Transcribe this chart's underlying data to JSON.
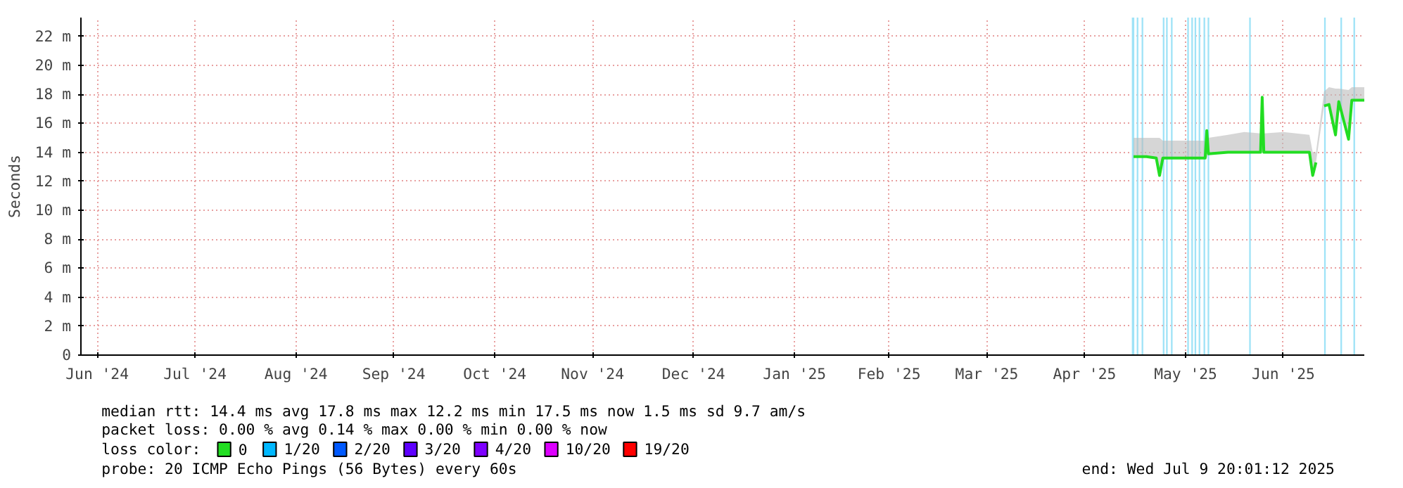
{
  "chart_data": {
    "type": "line",
    "ylabel": "Seconds",
    "xlim": [
      "2024-06-11",
      "2025-07-09T20:01"
    ],
    "xticks": [
      {
        "value": "2024-06-16",
        "label": "Jun '24"
      },
      {
        "value": "2024-07-16",
        "label": "Jul '24"
      },
      {
        "value": "2024-08-16",
        "label": "Aug '24"
      },
      {
        "value": "2024-09-15",
        "label": "Sep '24"
      },
      {
        "value": "2024-10-16",
        "label": "Oct '24"
      },
      {
        "value": "2024-11-15",
        "label": "Nov '24"
      },
      {
        "value": "2024-12-16",
        "label": "Dec '24"
      },
      {
        "value": "2025-01-16",
        "label": "Jan '25"
      },
      {
        "value": "2025-02-14",
        "label": "Feb '25"
      },
      {
        "value": "2025-03-16",
        "label": "Mar '25"
      },
      {
        "value": "2025-04-15",
        "label": "Apr '25"
      },
      {
        "value": "2025-05-16",
        "label": "May '25"
      },
      {
        "value": "2025-06-15",
        "label": "Jun '25"
      }
    ],
    "ylim": [
      0,
      23.3
    ],
    "yticks": [
      0,
      {
        "value": 2,
        "label": "2 m"
      },
      {
        "value": 4,
        "label": "4 m"
      },
      {
        "value": 6,
        "label": "6 m"
      },
      {
        "value": 8,
        "label": "8 m"
      },
      {
        "value": 10,
        "label": "10 m"
      },
      {
        "value": 12,
        "label": "12 m"
      },
      {
        "value": 14,
        "label": "14 m"
      },
      {
        "value": 16,
        "label": "16 m"
      },
      {
        "value": 18,
        "label": "18 m"
      },
      {
        "value": 20,
        "label": "20 m"
      },
      {
        "value": 22,
        "label": "22 m"
      }
    ],
    "grid": true,
    "marker": "none",
    "line_style": "solid",
    "legend": "bottom",
    "legend_title": "loss color:",
    "series": [
      {
        "name": "0",
        "color": "#22dd22",
        "x": [
          "2025-04-30",
          "2025-05-04",
          "2025-05-07",
          "2025-05-08",
          "2025-05-09",
          "2025-05-14",
          "2025-05-18",
          "2025-05-22",
          "2025-05-22T12:00",
          "2025-05-23",
          "2025-05-29",
          "2025-06-03",
          "2025-06-08",
          "2025-06-08T12:00",
          "2025-06-09",
          "2025-06-15",
          "2025-06-23",
          "2025-06-24",
          "2025-06-25",
          "2025-06-26",
          "2025-06-27T12:00",
          "2025-06-29",
          "2025-07-01",
          "2025-07-02",
          "2025-07-05",
          "2025-07-06",
          "2025-07-09T20:00"
        ],
        "values": [
          13.7,
          13.7,
          13.6,
          12.4,
          13.6,
          13.6,
          13.6,
          13.6,
          15.5,
          13.9,
          14.0,
          14.0,
          14.0,
          17.8,
          14.0,
          14.0,
          14.0,
          12.4,
          13.3,
          null,
          17.2,
          17.3,
          15.2,
          17.5,
          14.9,
          17.6,
          17.6
        ],
        "lower": [
          13.7,
          13.7,
          13.6,
          12.4,
          13.6,
          13.6,
          13.6,
          13.6,
          13.6,
          13.9,
          14.0,
          14.0,
          14.0,
          14.0,
          14.0,
          14.0,
          14.0,
          12.4,
          13.3,
          null,
          17.2,
          17.3,
          15.2,
          17.5,
          14.9,
          17.6,
          17.6
        ],
        "upper": [
          15.0,
          15.0,
          15.0,
          15.0,
          14.8,
          14.8,
          14.8,
          14.8,
          15.5,
          15.0,
          15.2,
          15.4,
          15.3,
          17.8,
          15.3,
          15.4,
          15.2,
          14.0,
          14.0,
          null,
          18.2,
          18.5,
          18.4,
          18.4,
          18.3,
          18.5,
          18.5
        ]
      },
      {
        "name": "1/20",
        "color": "#00b8ff"
      },
      {
        "name": "2/20",
        "color": "#0059ff"
      },
      {
        "name": "3/20",
        "color": "#5e00ff"
      },
      {
        "name": "4/20",
        "color": "#7e00ff"
      },
      {
        "name": "10/20",
        "color": "#dd00ff"
      },
      {
        "name": "19/20",
        "color": "#ff0000"
      }
    ],
    "bands": [
      {
        "axis": "x",
        "from": "2025-04-29T12:00",
        "to": "2025-04-30T06:00",
        "color": "#9fe3f7"
      },
      {
        "axis": "x",
        "from": "2025-05-01",
        "to": "2025-05-01T12:00",
        "color": "#9fe3f7"
      },
      {
        "axis": "x",
        "from": "2025-05-02T12:00",
        "to": "2025-05-03",
        "color": "#9fe3f7"
      },
      {
        "axis": "x",
        "from": "2025-05-09",
        "to": "2025-05-09T12:00",
        "color": "#9fe3f7"
      },
      {
        "axis": "x",
        "from": "2025-05-10",
        "to": "2025-05-10T12:00",
        "color": "#9fe3f7"
      },
      {
        "axis": "x",
        "from": "2025-05-11T12:00",
        "to": "2025-05-12",
        "color": "#9fe3f7"
      },
      {
        "axis": "x",
        "from": "2025-05-16T12:00",
        "to": "2025-05-17",
        "color": "#9fe3f7"
      },
      {
        "axis": "x",
        "from": "2025-05-17T18:00",
        "to": "2025-05-18T06:00",
        "color": "#9fe3f7"
      },
      {
        "axis": "x",
        "from": "2025-05-18T18:00",
        "to": "2025-05-19T06:00",
        "color": "#9fe3f7"
      },
      {
        "axis": "x",
        "from": "2025-05-20",
        "to": "2025-05-20T12:00",
        "color": "#9fe3f7"
      },
      {
        "axis": "x",
        "from": "2025-05-21T12:00",
        "to": "2025-05-22",
        "color": "#9fe3f7"
      },
      {
        "axis": "x",
        "from": "2025-05-22T18:00",
        "to": "2025-05-23T06:00",
        "color": "#9fe3f7"
      },
      {
        "axis": "x",
        "from": "2025-06-04T12:00",
        "to": "2025-06-05",
        "color": "#9fe3f7"
      },
      {
        "axis": "x",
        "from": "2025-06-27T12:00",
        "to": "2025-06-28",
        "color": "#9fe3f7"
      },
      {
        "axis": "x",
        "from": "2025-07-02T12:00",
        "to": "2025-07-03",
        "color": "#9fe3f7"
      },
      {
        "axis": "x",
        "from": "2025-07-06T12:00",
        "to": "2025-07-07",
        "color": "#9fe3f7"
      }
    ],
    "annotations": [
      "median rtt:  14.4 ms avg  17.8 ms max  12.2 ms min  17.5 ms now  1.5 ms sd  9.7   am/s",
      "packet loss: 0.00 % avg  0.14 % max  0.00 % min  0.00 % now",
      "probe:       20 ICMP Echo Pings (56 Bytes) every 60s",
      "end: Wed Jul  9 20:01:12 2025"
    ]
  }
}
